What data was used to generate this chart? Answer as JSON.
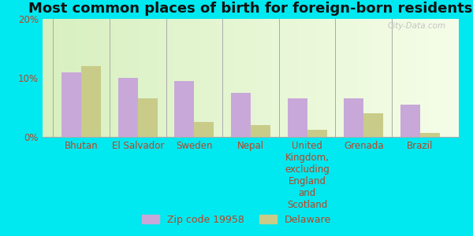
{
  "title": "Most common places of birth for foreign-born residents",
  "categories": [
    "Bhutan",
    "El Salvador",
    "Sweden",
    "Nepal",
    "United\nKingdom,\nexcluding\nEngland\nand\nScotland",
    "Grenada",
    "Brazil"
  ],
  "zip_values": [
    11.0,
    10.0,
    9.5,
    7.5,
    6.5,
    6.5,
    5.5
  ],
  "delaware_values": [
    12.0,
    6.5,
    2.5,
    2.0,
    1.2,
    4.0,
    0.7
  ],
  "zip_color": "#c8a8d8",
  "delaware_color": "#c8cc88",
  "outer_background": "#00e8f0",
  "ylim": [
    0,
    20
  ],
  "yticks": [
    0,
    10,
    20
  ],
  "ytick_labels": [
    "0%",
    "10%",
    "20%"
  ],
  "legend_zip_label": "Zip code 19958",
  "legend_delaware_label": "Delaware",
  "watermark": "City-Data.com",
  "title_fontsize": 13,
  "tick_fontsize": 8.5,
  "legend_fontsize": 9
}
